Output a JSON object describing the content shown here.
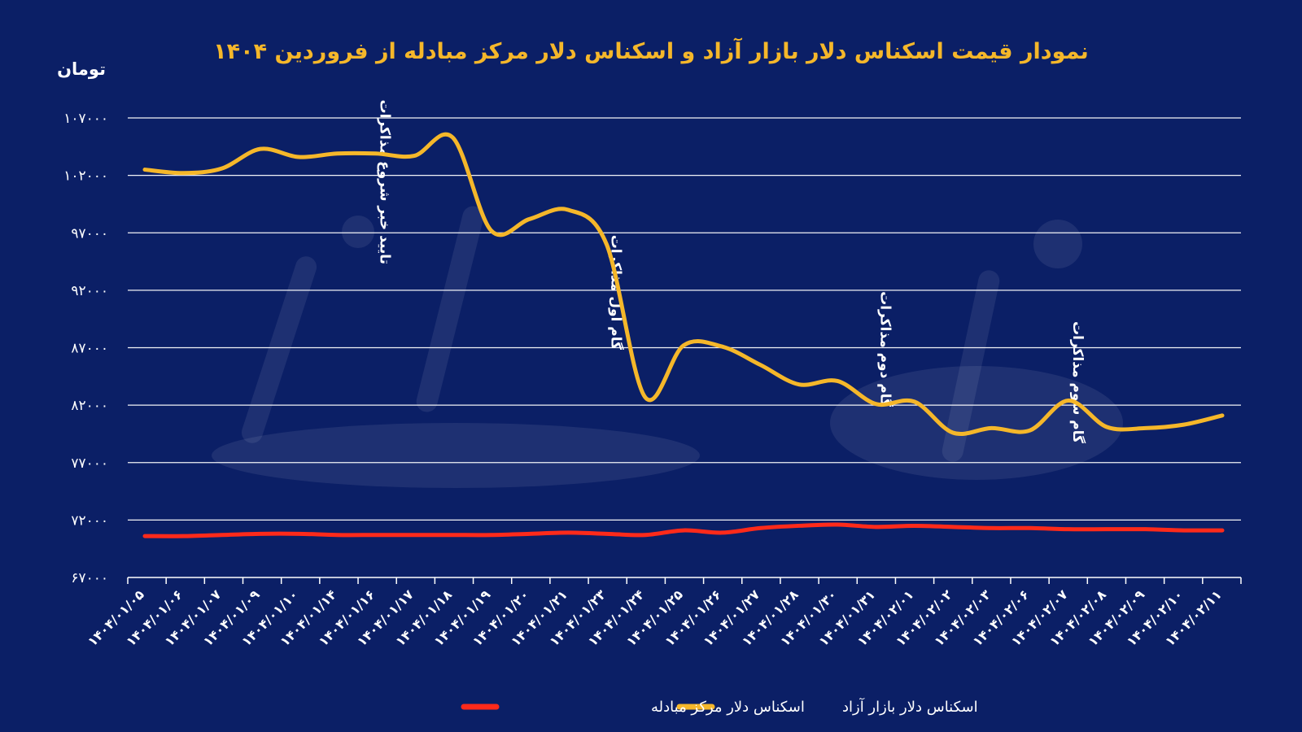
{
  "chart_data": {
    "type": "line",
    "title": "نمودار قیمت اسکناس دلار بازار آزاد و اسکناس دلار مرکز مبادله از فروردین ۱۴۰۴",
    "ylabel": "تومان",
    "ylim": [
      67000,
      107000
    ],
    "y_ticks": [
      "۱۰۷۰۰۰",
      "۱۰۲۰۰۰",
      "۹۷۰۰۰",
      "۹۲۰۰۰",
      "۸۷۰۰۰",
      "۸۲۰۰۰",
      "۷۷۰۰۰",
      "۷۲۰۰۰",
      "۶۷۰۰۰"
    ],
    "y_tick_values": [
      107000,
      102000,
      97000,
      92000,
      87000,
      82000,
      77000,
      72000,
      67000
    ],
    "categories": [
      "۱۴۰۴/۰۱/۰۵",
      "۱۴۰۴/۰۱/۰۶",
      "۱۴۰۴/۰۱/۰۷",
      "۱۴۰۴/۰۱/۰۹",
      "۱۴۰۴/۰۱/۱۰",
      "۱۴۰۴/۰۱/۱۴",
      "۱۴۰۴/۰۱/۱۶",
      "۱۴۰۴/۰۱/۱۷",
      "۱۴۰۴/۰۱/۱۸",
      "۱۴۰۴/۰۱/۱۹",
      "۱۴۰۴/۰۱/۲۰",
      "۱۴۰۴/۰۱/۲۱",
      "۱۴۰۴/۰۱/۲۳",
      "۱۴۰۴/۰۱/۲۴",
      "۱۴۰۴/۰۱/۲۵",
      "۱۴۰۴/۰۱/۲۶",
      "۱۴۰۴/۰۱/۲۷",
      "۱۴۰۴/۰۱/۲۸",
      "۱۴۰۴/۰۱/۳۰",
      "۱۴۰۴/۰۱/۳۱",
      "۱۴۰۴/۰۲/۰۱",
      "۱۴۰۴/۰۲/۰۲",
      "۱۴۰۴/۰۲/۰۳",
      "۱۴۰۴/۰۲/۰۶",
      "۱۴۰۴/۰۲/۰۷",
      "۱۴۰۴/۰۲/۰۸",
      "۱۴۰۴/۰۲/۰۹",
      "۱۴۰۴/۰۲/۱۰",
      "۱۴۰۴/۰۲/۱۱"
    ],
    "series": [
      {
        "name": "اسکناس دلار بازار آزاد",
        "color": "#f5b72a",
        "values": [
          102500,
          102200,
          102600,
          104300,
          103600,
          103900,
          103900,
          103700,
          105300,
          97200,
          98200,
          99000,
          96000,
          82700,
          87200,
          87100,
          85500,
          83800,
          84100,
          82100,
          82300,
          79600,
          80000,
          79800,
          82400,
          80100,
          80000,
          80300,
          81100
        ]
      },
      {
        "name": "اسکناس دلار مرکز مبادله",
        "color": "#ff2a1a",
        "values": [
          70600,
          70600,
          70700,
          70800,
          70800,
          70700,
          70700,
          70700,
          70700,
          70700,
          70800,
          70900,
          70800,
          70700,
          71100,
          70900,
          71300,
          71500,
          71600,
          71400,
          71500,
          71400,
          71300,
          71300,
          71200,
          71200,
          71200,
          71100,
          71100
        ]
      }
    ],
    "annotations": [
      {
        "text": "تایید خبر شروع مذاکرات",
        "category_index": 6
      },
      {
        "text": "گام اول مذاکرات",
        "category_index": 12
      },
      {
        "text": "گام دوم مذاکرات",
        "category_index": 19
      },
      {
        "text": "گام سوم مذاکرات",
        "category_index": 24
      }
    ],
    "legend_position": "bottom-center",
    "grid": true
  }
}
